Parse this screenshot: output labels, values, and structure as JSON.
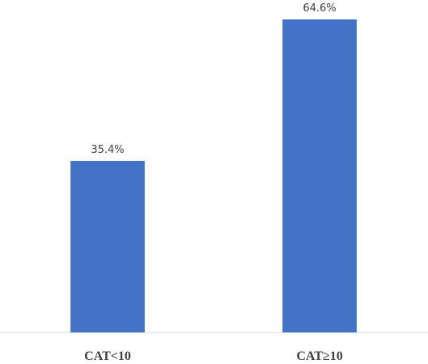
{
  "chart_data": {
    "type": "bar",
    "categories": [
      "CAT<10",
      "CAT≥10"
    ],
    "values": [
      35.4,
      64.6
    ],
    "value_labels": [
      "35.4%",
      "64.6%"
    ],
    "color": "#4472c4"
  }
}
